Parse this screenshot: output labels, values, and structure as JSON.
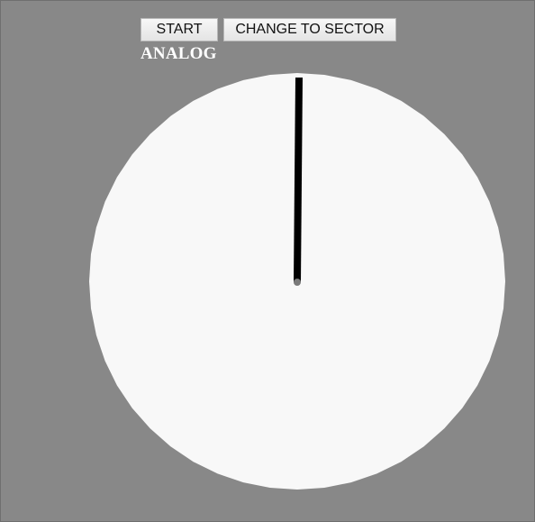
{
  "toolbar": {
    "start_label": "START",
    "change_label": "CHANGE TO SECTOR"
  },
  "mode_label": "ANALOG",
  "dial": {
    "face_color": "#f8f8f8",
    "hand_color": "#000000",
    "pivot_color": "#7a7a7a",
    "background_color": "#888888"
  }
}
